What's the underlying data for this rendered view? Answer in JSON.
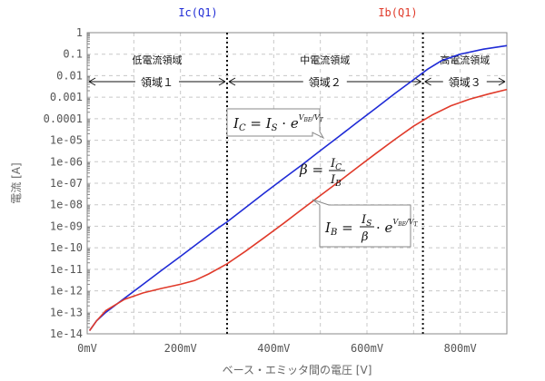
{
  "chart_data": {
    "type": "line",
    "ylabel": "電流 [A]",
    "xlabel": "ベース・エミッタ間の電圧 [V]",
    "xlim": [
      0,
      900
    ],
    "yscale": "log",
    "ylim": [
      1e-14,
      1
    ],
    "grid": true,
    "y_ticks": [
      "1",
      "0.1",
      "0.01",
      "0.001",
      "0.0001",
      "1e-05",
      "1e-06",
      "1e-07",
      "1e-08",
      "1e-09",
      "1e-10",
      "1e-11",
      "1e-12",
      "1e-13",
      "1e-14"
    ],
    "x_ticks": [
      {
        "value": 0,
        "label": "0mV"
      },
      {
        "value": 200,
        "label": "200mV"
      },
      {
        "value": 400,
        "label": "400mV"
      },
      {
        "value": 600,
        "label": "600mV"
      },
      {
        "value": 800,
        "label": "800mV"
      }
    ],
    "series": [
      {
        "name": "Ic(Q1)",
        "color": "#1f2bd6",
        "points": [
          [
            5,
            1.4e-14
          ],
          [
            20,
            4e-14
          ],
          [
            40,
            1e-13
          ],
          [
            80,
            4.5e-13
          ],
          [
            120,
            2e-12
          ],
          [
            160,
            9e-12
          ],
          [
            200,
            4e-11
          ],
          [
            240,
            1.8e-10
          ],
          [
            280,
            8e-10
          ],
          [
            300,
            1.6e-09
          ],
          [
            340,
            7.5e-09
          ],
          [
            380,
            3.5e-08
          ],
          [
            420,
            1.6e-07
          ],
          [
            460,
            7e-07
          ],
          [
            500,
            3.3e-06
          ],
          [
            540,
            1.5e-05
          ],
          [
            580,
            7e-05
          ],
          [
            620,
            0.00032
          ],
          [
            660,
            0.0015
          ],
          [
            700,
            0.0065
          ],
          [
            730,
            0.02
          ],
          [
            760,
            0.05
          ],
          [
            800,
            0.1
          ],
          [
            850,
            0.17
          ],
          [
            900,
            0.25
          ]
        ]
      },
      {
        "name": "Ib(Q1)",
        "color": "#e03a2a",
        "points": [
          [
            5,
            1.4e-14
          ],
          [
            20,
            4e-14
          ],
          [
            40,
            1.2e-13
          ],
          [
            80,
            4e-13
          ],
          [
            120,
            8e-13
          ],
          [
            160,
            1.3e-12
          ],
          [
            200,
            2e-12
          ],
          [
            230,
            3e-12
          ],
          [
            260,
            6e-12
          ],
          [
            300,
            1.8e-11
          ],
          [
            340,
            7e-11
          ],
          [
            380,
            3e-10
          ],
          [
            420,
            1.3e-09
          ],
          [
            460,
            6e-09
          ],
          [
            500,
            2.7e-08
          ],
          [
            540,
            1.2e-07
          ],
          [
            580,
            5.5e-07
          ],
          [
            620,
            2.5e-06
          ],
          [
            660,
            1.1e-05
          ],
          [
            700,
            4.5e-05
          ],
          [
            740,
            0.00015
          ],
          [
            780,
            0.0004
          ],
          [
            820,
            0.0008
          ],
          [
            860,
            0.0014
          ],
          [
            900,
            0.0023
          ]
        ]
      }
    ],
    "vlines": [
      300,
      720
    ],
    "regions": [
      {
        "title": "低電流領域",
        "label": "領域１",
        "from": 0,
        "to": 300
      },
      {
        "title": "中電流領域",
        "label": "領域２",
        "from": 300,
        "to": 720
      },
      {
        "title": "高電流領域",
        "label": "領域３",
        "from": 720,
        "to": 900
      }
    ]
  }
}
